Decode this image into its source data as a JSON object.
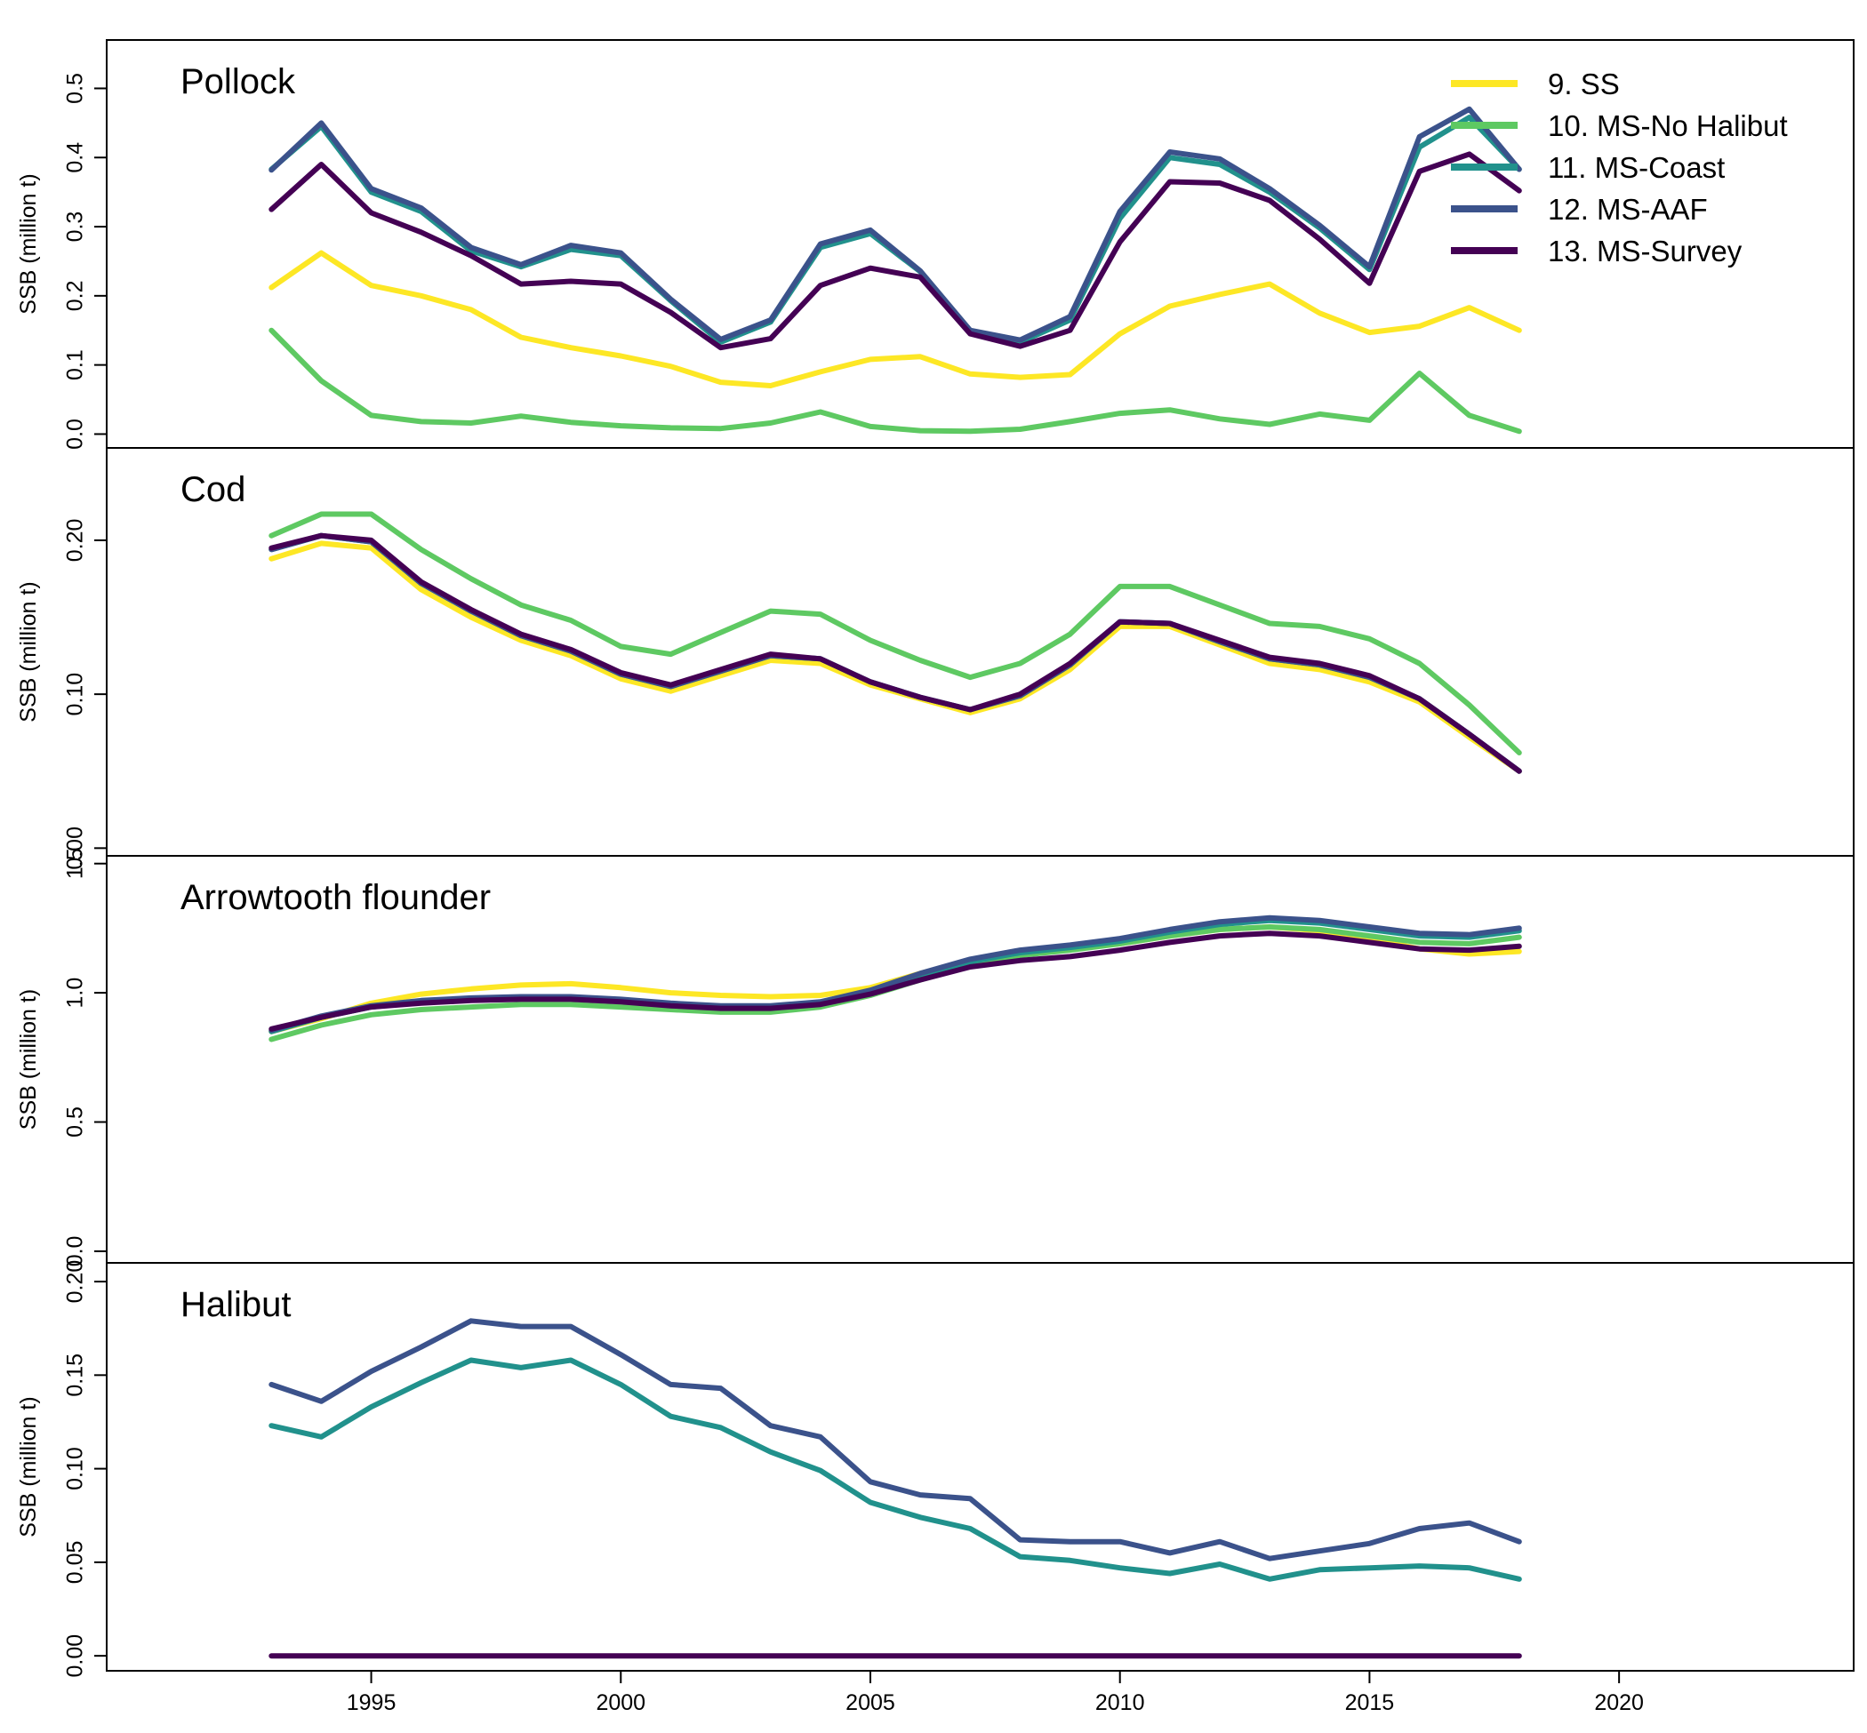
{
  "chart_data": {
    "type": "line",
    "x": [
      1993,
      1994,
      1995,
      1996,
      1997,
      1998,
      1999,
      2000,
      2001,
      2002,
      2003,
      2004,
      2005,
      2006,
      2007,
      2008,
      2009,
      2010,
      2011,
      2012,
      2013,
      2014,
      2015,
      2016,
      2017,
      2018
    ],
    "xlim": [
      1989.7,
      2024.7
    ],
    "x_ticks": [
      1995,
      2000,
      2005,
      2010,
      2015,
      2020
    ],
    "ylabel": "SSB (million t)",
    "grid": false,
    "legend": {
      "placement": "top-right",
      "entries": [
        {
          "label": "9. SS",
          "color": "#FDE725"
        },
        {
          "label": "10. MS-No Halibut",
          "color": "#5EC962"
        },
        {
          "label": "11. MS-Coast",
          "color": "#21918C"
        },
        {
          "label": "12. MS-AAF",
          "color": "#3B528B"
        },
        {
          "label": "13. MS-Survey",
          "color": "#440154"
        }
      ]
    },
    "panels": [
      {
        "title": "Pollock",
        "ylim": [
          -0.02,
          0.57
        ],
        "y_ticks": [
          0.0,
          0.1,
          0.2,
          0.3,
          0.4,
          0.5
        ],
        "y_tick_labels": [
          "0.0",
          "0.1",
          "0.2",
          "0.3",
          "0.4",
          "0.5"
        ],
        "series": [
          {
            "legend": "9. SS",
            "color": "#FDE725",
            "values": [
              0.212,
              0.262,
              0.215,
              0.2,
              0.18,
              0.14,
              0.125,
              0.113,
              0.098,
              0.075,
              0.07,
              0.09,
              0.108,
              0.112,
              0.087,
              0.082,
              0.086,
              0.145,
              0.185,
              0.202,
              0.217,
              0.175,
              0.147,
              0.156,
              0.183,
              0.15
            ]
          },
          {
            "legend": "10. MS-No Halibut",
            "color": "#5EC962",
            "values": [
              0.15,
              0.077,
              0.027,
              0.018,
              0.016,
              0.026,
              0.017,
              0.012,
              0.009,
              0.008,
              0.016,
              0.032,
              0.011,
              0.005,
              0.004,
              0.007,
              0.018,
              0.03,
              0.035,
              0.022,
              0.014,
              0.029,
              0.02,
              0.088,
              0.027,
              0.004
            ]
          },
          {
            "legend": "11. MS-Coast",
            "color": "#21918C",
            "values": [
              0.383,
              0.445,
              0.35,
              0.322,
              0.265,
              0.242,
              0.267,
              0.258,
              0.193,
              0.133,
              0.162,
              0.27,
              0.29,
              0.235,
              0.148,
              0.133,
              0.165,
              0.312,
              0.4,
              0.39,
              0.35,
              0.298,
              0.238,
              0.415,
              0.458,
              0.383
            ]
          },
          {
            "legend": "12. MS-AAF",
            "color": "#3B528B",
            "values": [
              0.382,
              0.45,
              0.355,
              0.327,
              0.27,
              0.245,
              0.273,
              0.262,
              0.195,
              0.137,
              0.165,
              0.275,
              0.295,
              0.236,
              0.15,
              0.136,
              0.17,
              0.322,
              0.408,
              0.398,
              0.355,
              0.302,
              0.242,
              0.43,
              0.47,
              0.383
            ]
          },
          {
            "legend": "13. MS-Survey",
            "color": "#440154",
            "values": [
              0.325,
              0.39,
              0.32,
              0.292,
              0.258,
              0.217,
              0.221,
              0.217,
              0.176,
              0.125,
              0.138,
              0.215,
              0.24,
              0.227,
              0.145,
              0.127,
              0.15,
              0.278,
              0.365,
              0.363,
              0.338,
              0.282,
              0.218,
              0.38,
              0.405,
              0.352
            ]
          }
        ]
      },
      {
        "title": "Cod",
        "ylim": [
          -0.005,
          0.26
        ],
        "y_ticks": [
          0.0,
          0.1,
          0.2
        ],
        "y_tick_labels": [
          "0.00",
          "0.10",
          "0.20"
        ],
        "series": [
          {
            "legend": "9. SS",
            "color": "#FDE725",
            "values": [
              0.188,
              0.198,
              0.195,
              0.168,
              0.15,
              0.135,
              0.125,
              0.11,
              0.102,
              0.112,
              0.122,
              0.12,
              0.106,
              0.097,
              0.088,
              0.097,
              0.116,
              0.144,
              0.144,
              0.132,
              0.12,
              0.116,
              0.108,
              0.095,
              0.072,
              0.05
            ]
          },
          {
            "legend": "10. MS-No Halibut",
            "color": "#5EC962",
            "values": [
              0.203,
              0.217,
              0.217,
              0.194,
              0.175,
              0.158,
              0.148,
              0.131,
              0.126,
              0.14,
              0.154,
              0.152,
              0.135,
              0.122,
              0.111,
              0.12,
              0.139,
              0.17,
              0.17,
              0.158,
              0.146,
              0.144,
              0.136,
              0.12,
              0.093,
              0.062
            ]
          },
          {
            "legend": "11. MS-Coast",
            "color": "#21918C",
            "values": [
              0.194,
              0.203,
              0.199,
              0.172,
              0.154,
              0.138,
              0.128,
              0.113,
              0.105,
              0.115,
              0.125,
              0.123,
              0.108,
              0.098,
              0.09,
              0.099,
              0.119,
              0.147,
              0.146,
              0.134,
              0.123,
              0.119,
              0.111,
              0.097,
              0.074,
              0.05
            ]
          },
          {
            "legend": "12. MS-AAF",
            "color": "#3B528B",
            "values": [
              0.194,
              0.203,
              0.199,
              0.172,
              0.154,
              0.138,
              0.128,
              0.113,
              0.105,
              0.115,
              0.125,
              0.123,
              0.108,
              0.098,
              0.09,
              0.099,
              0.119,
              0.147,
              0.146,
              0.134,
              0.123,
              0.119,
              0.111,
              0.097,
              0.074,
              0.05
            ]
          },
          {
            "legend": "13. MS-Survey",
            "color": "#440154",
            "values": [
              0.195,
              0.203,
              0.2,
              0.173,
              0.155,
              0.139,
              0.129,
              0.114,
              0.106,
              0.116,
              0.126,
              0.123,
              0.108,
              0.098,
              0.09,
              0.1,
              0.12,
              0.147,
              0.146,
              0.135,
              0.124,
              0.12,
              0.112,
              0.097,
              0.074,
              0.05
            ]
          }
        ]
      },
      {
        "title": "Arrowtooth flounder",
        "ylim": [
          -0.045,
          1.53
        ],
        "y_ticks": [
          0.0,
          0.5,
          1.0,
          1.5
        ],
        "y_tick_labels": [
          "0.0",
          "0.5",
          "1.0",
          "1.5"
        ],
        "series": [
          {
            "legend": "9. SS",
            "color": "#FDE725",
            "values": [
              0.85,
              0.9,
              0.96,
              0.995,
              1.015,
              1.03,
              1.035,
              1.02,
              1.0,
              0.99,
              0.985,
              0.99,
              1.02,
              1.075,
              1.125,
              1.155,
              1.17,
              1.19,
              1.22,
              1.245,
              1.255,
              1.24,
              1.21,
              1.17,
              1.15,
              1.16
            ]
          },
          {
            "legend": "10. MS-No Halibut",
            "color": "#5EC962",
            "values": [
              0.82,
              0.875,
              0.915,
              0.935,
              0.945,
              0.955,
              0.955,
              0.945,
              0.935,
              0.925,
              0.925,
              0.945,
              0.99,
              1.05,
              1.105,
              1.145,
              1.165,
              1.19,
              1.22,
              1.245,
              1.255,
              1.245,
              1.22,
              1.195,
              1.19,
              1.215
            ]
          },
          {
            "legend": "11. MS-Coast",
            "color": "#21918C",
            "values": [
              0.85,
              0.905,
              0.945,
              0.965,
              0.975,
              0.98,
              0.98,
              0.97,
              0.955,
              0.945,
              0.945,
              0.96,
              1.005,
              1.065,
              1.12,
              1.155,
              1.175,
              1.2,
              1.235,
              1.265,
              1.28,
              1.27,
              1.245,
              1.22,
              1.215,
              1.24
            ]
          },
          {
            "legend": "12. MS-AAF",
            "color": "#3B528B",
            "values": [
              0.855,
              0.91,
              0.95,
              0.97,
              0.98,
              0.985,
              0.985,
              0.975,
              0.96,
              0.95,
              0.95,
              0.965,
              1.01,
              1.075,
              1.13,
              1.165,
              1.185,
              1.21,
              1.245,
              1.275,
              1.29,
              1.28,
              1.255,
              1.23,
              1.225,
              1.25
            ]
          },
          {
            "legend": "13. MS-Survey",
            "color": "#440154",
            "values": [
              0.86,
              0.905,
              0.945,
              0.96,
              0.97,
              0.975,
              0.975,
              0.965,
              0.95,
              0.94,
              0.94,
              0.955,
              0.995,
              1.05,
              1.1,
              1.125,
              1.14,
              1.165,
              1.195,
              1.22,
              1.23,
              1.22,
              1.195,
              1.17,
              1.165,
              1.18
            ]
          }
        ]
      },
      {
        "title": "Halibut",
        "ylim": [
          -0.008,
          0.21
        ],
        "y_ticks": [
          0.0,
          0.05,
          0.1,
          0.15,
          0.2
        ],
        "y_tick_labels": [
          "0.00",
          "0.05",
          "0.10",
          "0.15",
          "0.20"
        ],
        "series": [
          {
            "legend": "11. MS-Coast",
            "color": "#21918C",
            "values": [
              0.123,
              0.117,
              0.133,
              0.146,
              0.158,
              0.154,
              0.158,
              0.145,
              0.128,
              0.122,
              0.109,
              0.099,
              0.082,
              0.074,
              0.068,
              0.053,
              0.051,
              0.047,
              0.044,
              0.049,
              0.041,
              0.046,
              0.047,
              0.048,
              0.047,
              0.041
            ]
          },
          {
            "legend": "12. MS-AAF",
            "color": "#3B528B",
            "values": [
              0.145,
              0.136,
              0.152,
              0.165,
              0.179,
              0.176,
              0.176,
              0.161,
              0.145,
              0.143,
              0.123,
              0.117,
              0.093,
              0.086,
              0.084,
              0.062,
              0.061,
              0.061,
              0.055,
              0.061,
              0.052,
              0.056,
              0.06,
              0.068,
              0.071,
              0.061
            ]
          },
          {
            "legend": "13. MS-Survey",
            "color": "#440154",
            "values": [
              0.0,
              0.0,
              0.0,
              0.0,
              0.0,
              0.0,
              0.0,
              0.0,
              0.0,
              0.0,
              0.0,
              0.0,
              0.0,
              0.0,
              0.0,
              0.0,
              0.0,
              0.0,
              0.0,
              0.0,
              0.0,
              0.0,
              0.0,
              0.0,
              0.0,
              0.0
            ]
          }
        ]
      }
    ]
  }
}
